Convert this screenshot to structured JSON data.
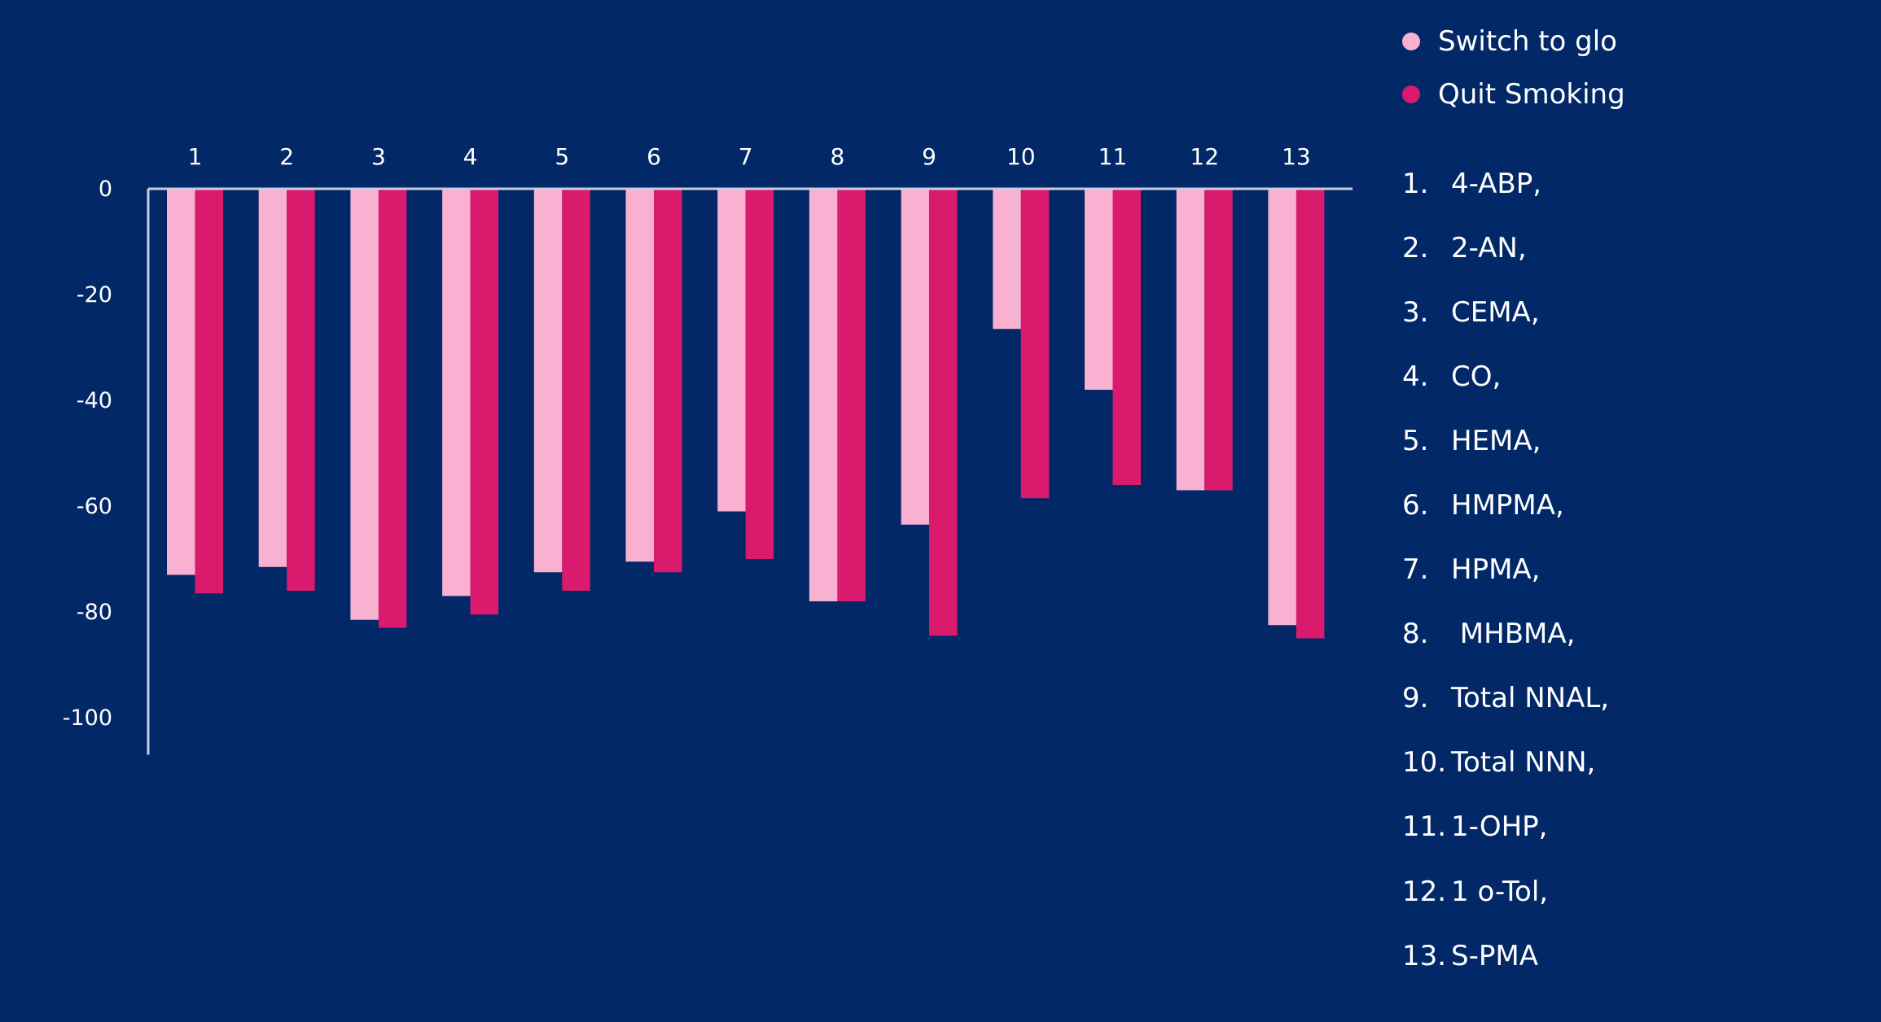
{
  "colors": {
    "background": "#032868",
    "switch": "#f8b1d0",
    "quit": "#d91a6d",
    "axis": "#c9cde0"
  },
  "legend": [
    {
      "label": "Switch to glo",
      "color": "#f8b1d0"
    },
    {
      "label": "Quit Smoking",
      "color": "#d91a6d"
    }
  ],
  "key": [
    {
      "num": "1.",
      "label": "4-ABP,"
    },
    {
      "num": "2.",
      "label": "2-AN,"
    },
    {
      "num": "3.",
      "label": "CEMA,"
    },
    {
      "num": "4.",
      "label": "CO,"
    },
    {
      "num": "5.",
      "label": "HEMA,"
    },
    {
      "num": "6.",
      "label": "HMPMA,"
    },
    {
      "num": "7.",
      "label": "HPMA,"
    },
    {
      "num": "8.",
      "label": " MHBMA,"
    },
    {
      "num": "9.",
      "label": "Total NNAL,"
    },
    {
      "num": "10.",
      "label": "Total NNN,"
    },
    {
      "num": "11.",
      "label": "1-OHP,"
    },
    {
      "num": "12.",
      "label": "1 o-Tol,"
    },
    {
      "num": "13.",
      "label": "S-PMA"
    }
  ],
  "chart_data": {
    "type": "bar",
    "title": "",
    "xlabel": "",
    "ylabel": "",
    "categories": [
      "1",
      "2",
      "3",
      "4",
      "5",
      "6",
      "7",
      "8",
      "9",
      "10",
      "11",
      "12",
      "13"
    ],
    "series": [
      {
        "name": "Switch to glo",
        "values": [
          -73,
          -71.5,
          -81.5,
          -77,
          -72.5,
          -70.5,
          -61,
          -78,
          -63.5,
          -26.5,
          -38,
          -57,
          -82.5
        ]
      },
      {
        "name": "Quit Smoking",
        "values": [
          -76.5,
          -76,
          -83,
          -80.5,
          -76,
          -72.5,
          -70,
          -78,
          -84.5,
          -58.5,
          -56,
          -57,
          -85
        ]
      }
    ],
    "ylim": [
      -107,
      0
    ],
    "yticks": [
      "0",
      "-20",
      "-40",
      "-60",
      "-80",
      "-100"
    ],
    "ytick_values": [
      0,
      -20,
      -40,
      -60,
      -80,
      -100
    ],
    "x_tick_position": "top",
    "legend_position": "top-right",
    "grid": false
  }
}
